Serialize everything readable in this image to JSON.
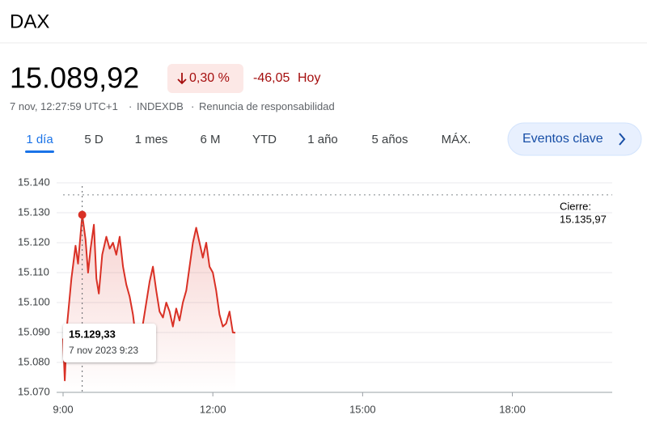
{
  "header": {
    "title": "DAX",
    "price": "15.089,92",
    "change_percent": "0,30 %",
    "change_value": "-46,05",
    "change_period": "Hoy",
    "timestamp": "7 nov, 12:27:59 UTC+1",
    "separator": "·",
    "exchange": "INDEXDB",
    "disclaimer": "Renuncia de responsabilidad"
  },
  "tabs": [
    "1 día",
    "5 D",
    "1 mes",
    "6 M",
    "YTD",
    "1 año",
    "5 años",
    "MÁX."
  ],
  "key_events_button": "Eventos clave",
  "chart_data": {
    "type": "line",
    "x": [
      9,
      9.0333,
      9.0833,
      9.1667,
      9.25,
      9.3,
      9.3833,
      9.45,
      9.5,
      9.55,
      9.6167,
      9.6667,
      9.7167,
      9.7833,
      9.8667,
      9.9333,
      10,
      10.0667,
      10.1333,
      10.2,
      10.2667,
      10.3333,
      10.4,
      10.4667,
      10.5333,
      10.6,
      10.6667,
      10.7333,
      10.8,
      10.8667,
      10.9333,
      11,
      11.0667,
      11.1333,
      11.2,
      11.2667,
      11.3333,
      11.4,
      11.4667,
      11.5333,
      11.6,
      11.6667,
      11.7333,
      11.8,
      11.8667,
      11.9333,
      12,
      12.0667,
      12.1333,
      12.2,
      12.2667,
      12.3333,
      12.4,
      12.45
    ],
    "series": [
      {
        "color": "#d93025",
        "values": [
          15088,
          15074,
          15093,
          15108,
          15119,
          15113,
          15129.33,
          15121,
          15110,
          15118,
          15126,
          15108,
          15103,
          15116,
          15122,
          15118,
          15120,
          15116,
          15122,
          15112,
          15106,
          15102,
          15096,
          15087,
          15088,
          15093,
          15100,
          15107,
          15112,
          15104,
          15097,
          15095,
          15100,
          15097,
          15092,
          15098,
          15094,
          15100,
          15104,
          15112,
          15120,
          15125,
          15120,
          15115,
          15120,
          15112,
          15110,
          15104,
          15096,
          15092,
          15093,
          15097,
          15090,
          15089.92
        ]
      }
    ],
    "xlim": [
      9,
      20
    ],
    "xticks": [
      {
        "value": 9,
        "label": "9:00"
      },
      {
        "value": 12,
        "label": "12:00"
      },
      {
        "value": 15,
        "label": "15:00"
      },
      {
        "value": 18,
        "label": "18:00"
      }
    ],
    "ylim": [
      15070,
      15140
    ],
    "yticks": [
      {
        "value": 15070,
        "label": "15.070"
      },
      {
        "value": 15080,
        "label": "15.080"
      },
      {
        "value": 15090,
        "label": "15.090"
      },
      {
        "value": 15100,
        "label": "15.100"
      },
      {
        "value": 15110,
        "label": "15.110"
      },
      {
        "value": 15120,
        "label": "15.120"
      },
      {
        "value": 15130,
        "label": "15.130"
      },
      {
        "value": 15140,
        "label": "15.140"
      }
    ],
    "grid": true,
    "reference": {
      "label": "Cierre:",
      "value": 15135.97,
      "value_label": "15.135,97"
    },
    "tooltip": {
      "x": 9.3833,
      "value": 15129.33,
      "value_label": "15.129,33",
      "date": "7 nov 2023 9:23"
    }
  }
}
